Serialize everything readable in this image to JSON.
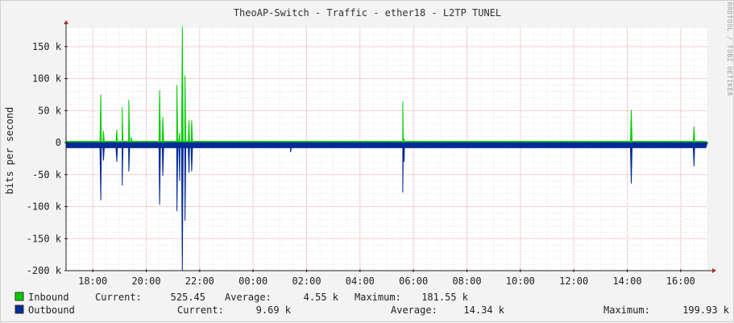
{
  "chart_data": {
    "type": "area",
    "title": "TheoAP-Switch - Traffic - ether18 - L2TP TUNEL",
    "ylabel": "bits per second",
    "side_label": "RRDTOOL / TOBI OETIKER",
    "ylim": [
      -200000,
      180000
    ],
    "y_ticks": [
      {
        "value": 150000,
        "label": "150 k"
      },
      {
        "value": 100000,
        "label": "100 k"
      },
      {
        "value": 50000,
        "label": "50 k"
      },
      {
        "value": 0,
        "label": "0"
      },
      {
        "value": -50000,
        "label": "-50 k"
      },
      {
        "value": -100000,
        "label": "-100 k"
      },
      {
        "value": -150000,
        "label": "-150 k"
      },
      {
        "value": -200000,
        "label": "-200 k"
      }
    ],
    "x_range": [
      17.0,
      17.0,
      17.0
    ],
    "x_start_hour": 17.0,
    "x_end_hour": 41.0,
    "x_ticks": [
      {
        "hour": 18,
        "label": "18:00"
      },
      {
        "hour": 20,
        "label": "20:00"
      },
      {
        "hour": 22,
        "label": "22:00"
      },
      {
        "hour": 24,
        "label": "00:00"
      },
      {
        "hour": 26,
        "label": "02:00"
      },
      {
        "hour": 28,
        "label": "04:00"
      },
      {
        "hour": 30,
        "label": "06:00"
      },
      {
        "hour": 32,
        "label": "08:00"
      },
      {
        "hour": 34,
        "label": "10:00"
      },
      {
        "hour": 36,
        "label": "12:00"
      },
      {
        "hour": 38,
        "label": "14:00"
      },
      {
        "hour": 40,
        "label": "16:00"
      }
    ],
    "grid": true,
    "series": [
      {
        "name": "Inbound",
        "color": "#00cc00",
        "baseline": 2000,
        "points": [
          {
            "hour": 18.3,
            "value": 75000
          },
          {
            "hour": 18.4,
            "value": 18000
          },
          {
            "hour": 18.9,
            "value": 20000
          },
          {
            "hour": 19.1,
            "value": 55000
          },
          {
            "hour": 19.35,
            "value": 67000
          },
          {
            "hour": 19.45,
            "value": 8000
          },
          {
            "hour": 20.5,
            "value": 82000
          },
          {
            "hour": 20.62,
            "value": 40000
          },
          {
            "hour": 21.15,
            "value": 90000
          },
          {
            "hour": 21.25,
            "value": 15000
          },
          {
            "hour": 21.35,
            "value": 181550
          },
          {
            "hour": 21.45,
            "value": 105000
          },
          {
            "hour": 21.6,
            "value": 35000
          },
          {
            "hour": 21.7,
            "value": 35000
          },
          {
            "hour": 29.6,
            "value": 64000
          },
          {
            "hour": 29.65,
            "value": 6000
          },
          {
            "hour": 38.15,
            "value": 51000
          },
          {
            "hour": 40.5,
            "value": 25000
          }
        ]
      },
      {
        "name": "Outbound",
        "color": "#002a97",
        "baseline": -8000,
        "points": [
          {
            "hour": 18.3,
            "value": -90000
          },
          {
            "hour": 18.4,
            "value": -28000
          },
          {
            "hour": 18.9,
            "value": -30000
          },
          {
            "hour": 19.1,
            "value": -67000
          },
          {
            "hour": 19.35,
            "value": -45000
          },
          {
            "hour": 20.5,
            "value": -97000
          },
          {
            "hour": 20.62,
            "value": -52000
          },
          {
            "hour": 21.15,
            "value": -107000
          },
          {
            "hour": 21.25,
            "value": -60000
          },
          {
            "hour": 21.35,
            "value": -199930
          },
          {
            "hour": 21.45,
            "value": -122000
          },
          {
            "hour": 21.6,
            "value": -47000
          },
          {
            "hour": 21.7,
            "value": -45000
          },
          {
            "hour": 25.4,
            "value": -15000
          },
          {
            "hour": 29.6,
            "value": -78000
          },
          {
            "hour": 29.65,
            "value": -30000
          },
          {
            "hour": 38.15,
            "value": -64000
          },
          {
            "hour": 40.5,
            "value": -37000
          }
        ]
      }
    ],
    "legend": [
      {
        "name": "Inbound",
        "color": "#00cc00",
        "current_label": "Current:",
        "current": "525.45",
        "average_label": "Average:",
        "average": "4.55 k",
        "maximum_label": "Maximum:",
        "maximum": "181.55 k"
      },
      {
        "name": "Outbound",
        "color": "#002a97",
        "current_label": "Current:",
        "current": "9.69 k",
        "average_label": "Average:",
        "average": "14.34 k",
        "maximum_label": "Maximum:",
        "maximum": "199.93 k"
      }
    ]
  }
}
